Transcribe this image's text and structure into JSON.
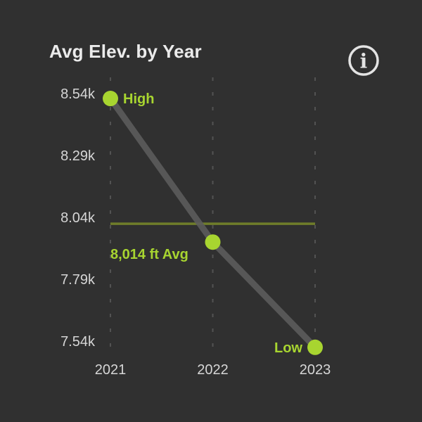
{
  "header": {
    "title": "Avg Elev. by Year",
    "info_icon": "info-circle-icon",
    "info_glyph": "i"
  },
  "colors": {
    "background": "#303030",
    "accent_lime": "#a8d530",
    "avg_line_olive": "#6f7d2a",
    "trend_gray": "#5c5c5c",
    "grid_gray": "#525252",
    "tick_text": "#d6d6d6",
    "title_text": "#ebebeb",
    "icon_stroke": "#e3e3e3"
  },
  "chart_data": {
    "type": "line",
    "title": "Avg Elev. by Year",
    "categories": [
      "2021",
      "2022",
      "2023"
    ],
    "values": [
      8520,
      7940,
      7515
    ],
    "point_labels": [
      "High",
      "",
      "Low"
    ],
    "avg_line": {
      "value": 8014,
      "label": "8,014 ft Avg"
    },
    "yticks": [
      {
        "value": 8540,
        "label": "8.54k"
      },
      {
        "value": 8290,
        "label": "8.29k"
      },
      {
        "value": 8040,
        "label": "8.04k"
      },
      {
        "value": 7790,
        "label": "7.79k"
      },
      {
        "value": 7540,
        "label": "7.54k"
      }
    ],
    "ylim": [
      7540,
      8540
    ],
    "xlabel": "",
    "ylabel": "",
    "grid": "vertical-dashed",
    "legend": false,
    "units": "ft"
  }
}
